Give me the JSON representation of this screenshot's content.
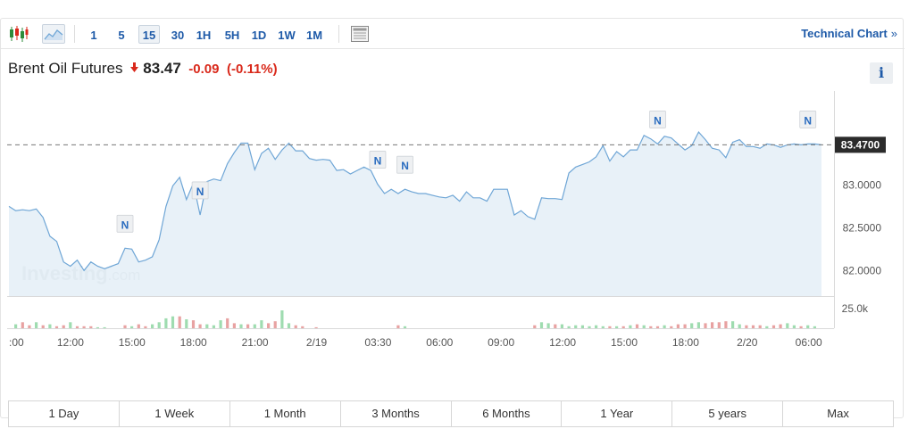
{
  "toolbar": {
    "intervals": [
      "1",
      "5",
      "15",
      "30",
      "1H",
      "5H",
      "1D",
      "1W",
      "1M"
    ],
    "active_interval": "15",
    "technical_chart": "Technical Chart",
    "technical_chart_arrow": "»"
  },
  "quote": {
    "name": "Brent Oil Futures",
    "direction_icon": "down-arrow-icon",
    "price": "83.47",
    "change": "-0.09",
    "change_pct": "(-0.11%)",
    "info": "i"
  },
  "watermark": {
    "brand": "Investing",
    "suffix": ".com"
  },
  "news_marker_label": "N",
  "colors": {
    "line": "#6fa6d6",
    "area": "#e4eef7",
    "down": "#d9291b",
    "accent": "#1e5aa8",
    "vol_up": "#9fdcb0",
    "vol_down": "#e8a2a2"
  },
  "chart_data": {
    "type": "area",
    "title": "Brent Oil Futures",
    "xlabel": "",
    "ylabel": "",
    "x_ticks": [
      ":00",
      "12:00",
      "15:00",
      "18:00",
      "21:00",
      "2/19",
      "03:30",
      "06:00",
      "09:00",
      "12:00",
      "15:00",
      "18:00",
      "2/20",
      "06:00"
    ],
    "y_ticks": [
      "82.0000",
      "82.5000",
      "83.0000"
    ],
    "ylim": [
      81.7,
      84.1
    ],
    "last_value": 83.47,
    "last_label": "83.4700",
    "series": [
      {
        "values": [
          82.75,
          82.7,
          82.71,
          82.7,
          82.72,
          82.62,
          82.4,
          82.34,
          82.1,
          82.05,
          82.12,
          82.0,
          82.1,
          82.05,
          82.02,
          82.05,
          82.08,
          82.26,
          82.25,
          82.1,
          82.12,
          82.16,
          82.36,
          82.75,
          82.99,
          83.09,
          82.83,
          83.02,
          82.65,
          83.04,
          83.07,
          83.05,
          83.25,
          83.38,
          83.49,
          83.49,
          83.18,
          83.37,
          83.43,
          83.3,
          83.41,
          83.49,
          83.4,
          83.4,
          83.31,
          83.29,
          83.3,
          83.29,
          83.17,
          83.18,
          83.13,
          83.17,
          83.21,
          83.17,
          83.01,
          82.9,
          82.95,
          82.9,
          82.95,
          82.92,
          82.9,
          82.9,
          82.88,
          82.86,
          82.85,
          82.88,
          82.81,
          82.92,
          82.85,
          82.85,
          82.81,
          82.95,
          82.95,
          82.95,
          82.65,
          82.7,
          82.63,
          82.6,
          82.85,
          82.84,
          82.84,
          82.83,
          83.14,
          83.21,
          83.24,
          83.27,
          83.33,
          83.46,
          83.28,
          83.39,
          83.33,
          83.41,
          83.41,
          83.58,
          83.54,
          83.48,
          83.57,
          83.55,
          83.48,
          83.41,
          83.46,
          83.62,
          83.53,
          83.43,
          83.41,
          83.32,
          83.5,
          83.53,
          83.45,
          83.45,
          83.43,
          83.48,
          83.47,
          83.44,
          83.47,
          83.48,
          83.47,
          83.48,
          83.48,
          83.47
        ]
      },
      {
        "name": "Volume",
        "y_tick": "25.0k",
        "values": [
          0,
          4,
          6,
          3,
          6,
          3,
          4,
          2,
          3,
          6,
          2,
          2,
          2,
          1,
          1,
          0,
          0,
          3,
          2,
          4,
          2,
          4,
          6,
          10,
          12,
          12,
          9,
          8,
          4,
          4,
          3,
          8,
          10,
          5,
          4,
          4,
          4,
          8,
          5,
          7,
          18,
          5,
          3,
          2,
          0,
          1,
          0,
          0,
          0,
          0,
          0,
          0,
          0,
          0,
          0,
          0,
          0,
          3,
          2,
          0,
          0,
          0,
          0,
          0,
          0,
          0,
          0,
          0,
          0,
          0,
          0,
          0,
          0,
          0,
          0,
          0,
          0,
          3,
          6,
          5,
          4,
          4,
          2,
          3,
          3,
          2,
          3,
          2,
          2,
          2,
          2,
          3,
          4,
          3,
          2,
          2,
          3,
          2,
          4,
          4,
          5,
          6,
          5,
          6,
          6,
          7,
          7,
          4,
          3,
          3,
          3,
          2,
          3,
          4,
          5,
          3,
          2,
          3,
          2,
          0,
          0,
          0
        ],
        "up": [
          1,
          1,
          0,
          0,
          1,
          0,
          1,
          0,
          0,
          1,
          0,
          0,
          0,
          1,
          1,
          1,
          1,
          0,
          1,
          0,
          0,
          1,
          1,
          1,
          1,
          0,
          1,
          0,
          0,
          1,
          1,
          1,
          0,
          0,
          1,
          0,
          1,
          1,
          0,
          0,
          1,
          1,
          0,
          0,
          0,
          0,
          1,
          1,
          0,
          1,
          1,
          0,
          1,
          0,
          0,
          0,
          1,
          0,
          1,
          0,
          0,
          0,
          1,
          0,
          0,
          1,
          0,
          1,
          0,
          0,
          0,
          1,
          1,
          0,
          0,
          1,
          0,
          0,
          1,
          1,
          0,
          1,
          1,
          1,
          1,
          1,
          1,
          1,
          0,
          1,
          0,
          1,
          0,
          1,
          0,
          0,
          1,
          0,
          0,
          0,
          1,
          1,
          0,
          0,
          0,
          0,
          1,
          1,
          0,
          0,
          0,
          1,
          0,
          0,
          1,
          1,
          0,
          1,
          1,
          0,
          1,
          0
        ]
      }
    ],
    "news_markers": [
      {
        "index": 17
      },
      {
        "index": 28
      },
      {
        "index": 54
      },
      {
        "index": 58
      },
      {
        "index": 95
      },
      {
        "index": 117
      }
    ]
  },
  "ranges": [
    "1 Day",
    "1 Week",
    "1 Month",
    "3 Months",
    "6 Months",
    "1 Year",
    "5 years",
    "Max"
  ]
}
